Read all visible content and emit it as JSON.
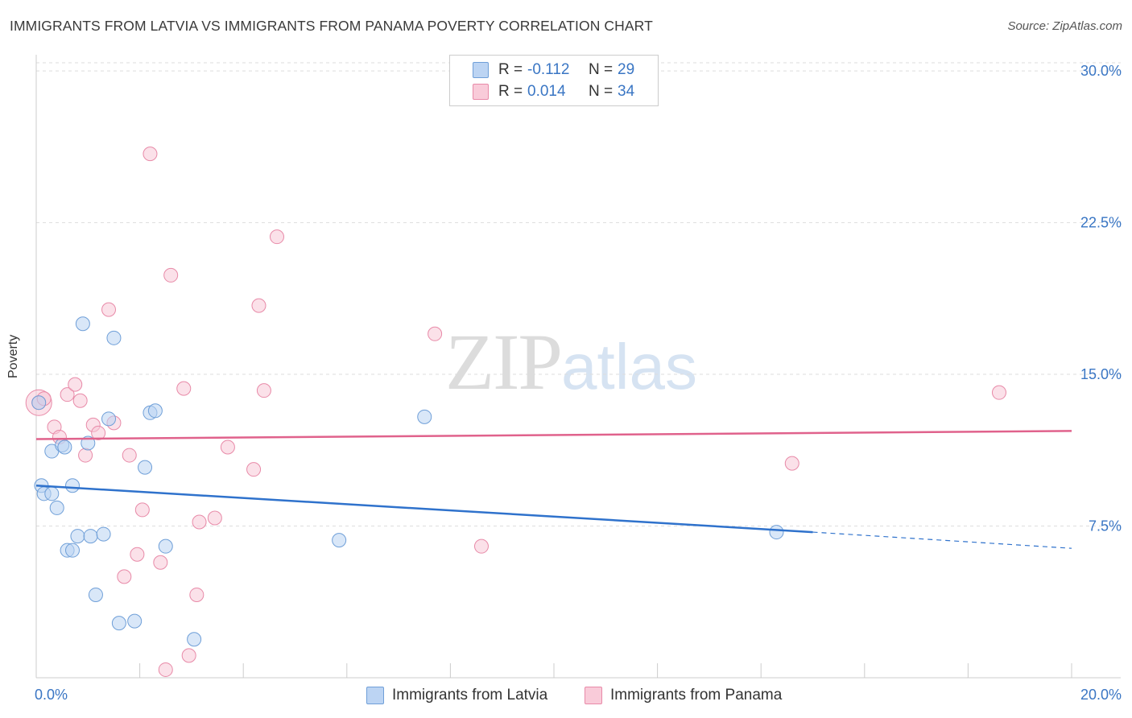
{
  "title": "IMMIGRANTS FROM LATVIA VS IMMIGRANTS FROM PANAMA POVERTY CORRELATION CHART",
  "source": "Source: ZipAtlas.com",
  "watermark": {
    "zip": "ZIP",
    "atlas": "atlas"
  },
  "legend": {
    "r_label": "R =",
    "n_label": "N =",
    "rows": [
      {
        "r": "-0.112",
        "n": "29",
        "color": "#a9c8f0",
        "border": "#6f9fd8"
      },
      {
        "r": "0.014",
        "n": "34",
        "color": "#f6bccf",
        "border": "#e88aa8"
      }
    ]
  },
  "series_labels": [
    "Immigrants from Latvia",
    "Immigrants from Panama"
  ],
  "colors": {
    "latvia_fill": "#b9d3f3",
    "latvia_stroke": "#6f9fd8",
    "latvia_line": "#2f72cc",
    "panama_fill": "#f8c8d7",
    "panama_stroke": "#e88aa8",
    "panama_line": "#e0628c",
    "axis_text": "#3a76c4",
    "grid": "#dddddd"
  },
  "chart_data": {
    "type": "scatter",
    "title": "IMMIGRANTS FROM LATVIA VS IMMIGRANTS FROM PANAMA POVERTY CORRELATION CHART",
    "xlabel": "",
    "ylabel": "Poverty",
    "xlim": [
      0,
      20
    ],
    "ylim": [
      0,
      30.8
    ],
    "x_tick_labels": [
      "0.0%",
      "20.0%"
    ],
    "y_ticks": [
      7.5,
      15.0,
      22.5,
      30.0
    ],
    "y_tick_labels": [
      "7.5%",
      "15.0%",
      "22.5%",
      "30.0%"
    ],
    "series": [
      {
        "name": "Immigrants from Latvia",
        "r": -0.112,
        "n": 29,
        "points": [
          [
            0.05,
            13.6
          ],
          [
            0.1,
            9.5
          ],
          [
            0.15,
            9.1
          ],
          [
            0.3,
            9.1
          ],
          [
            0.4,
            8.4
          ],
          [
            0.3,
            11.2
          ],
          [
            0.5,
            11.5
          ],
          [
            0.55,
            11.4
          ],
          [
            0.6,
            6.3
          ],
          [
            0.7,
            6.3
          ],
          [
            0.7,
            9.5
          ],
          [
            0.8,
            7.0
          ],
          [
            0.9,
            17.5
          ],
          [
            1.0,
            11.6
          ],
          [
            1.05,
            7.0
          ],
          [
            1.15,
            4.1
          ],
          [
            1.3,
            7.1
          ],
          [
            1.4,
            12.8
          ],
          [
            1.5,
            16.8
          ],
          [
            1.6,
            2.7
          ],
          [
            1.9,
            2.8
          ],
          [
            2.1,
            10.4
          ],
          [
            2.2,
            13.1
          ],
          [
            2.3,
            13.2
          ],
          [
            2.5,
            6.5
          ],
          [
            3.05,
            1.9
          ],
          [
            5.85,
            6.8
          ],
          [
            7.5,
            12.9
          ],
          [
            14.3,
            7.2
          ]
        ],
        "trend": {
          "x_solid": [
            0,
            15.0
          ],
          "y_solid": [
            9.5,
            7.2
          ],
          "x_dashed": [
            15.0,
            20.0
          ],
          "y_dashed": [
            7.2,
            6.4
          ]
        }
      },
      {
        "name": "Immigrants from Panama",
        "r": 0.014,
        "n": 34,
        "points": [
          [
            0.05,
            13.6
          ],
          [
            0.15,
            13.8
          ],
          [
            0.35,
            12.4
          ],
          [
            0.45,
            11.9
          ],
          [
            0.6,
            14.0
          ],
          [
            0.75,
            14.5
          ],
          [
            0.85,
            13.7
          ],
          [
            0.95,
            11.0
          ],
          [
            1.1,
            12.5
          ],
          [
            1.2,
            12.1
          ],
          [
            1.4,
            18.2
          ],
          [
            1.5,
            12.6
          ],
          [
            1.7,
            5.0
          ],
          [
            1.8,
            11.0
          ],
          [
            1.95,
            6.1
          ],
          [
            2.05,
            8.3
          ],
          [
            2.2,
            25.9
          ],
          [
            2.4,
            5.7
          ],
          [
            2.5,
            0.4
          ],
          [
            2.6,
            19.9
          ],
          [
            2.85,
            14.3
          ],
          [
            2.95,
            1.1
          ],
          [
            3.1,
            4.1
          ],
          [
            3.15,
            7.7
          ],
          [
            3.45,
            7.9
          ],
          [
            3.7,
            11.4
          ],
          [
            4.2,
            10.3
          ],
          [
            4.3,
            18.4
          ],
          [
            4.4,
            14.2
          ],
          [
            4.65,
            21.8
          ],
          [
            7.7,
            17.0
          ],
          [
            8.6,
            6.5
          ],
          [
            14.6,
            10.6
          ],
          [
            18.6,
            14.1
          ]
        ],
        "trend": {
          "x": [
            0,
            20.0
          ],
          "y": [
            11.8,
            12.2
          ]
        }
      }
    ]
  }
}
